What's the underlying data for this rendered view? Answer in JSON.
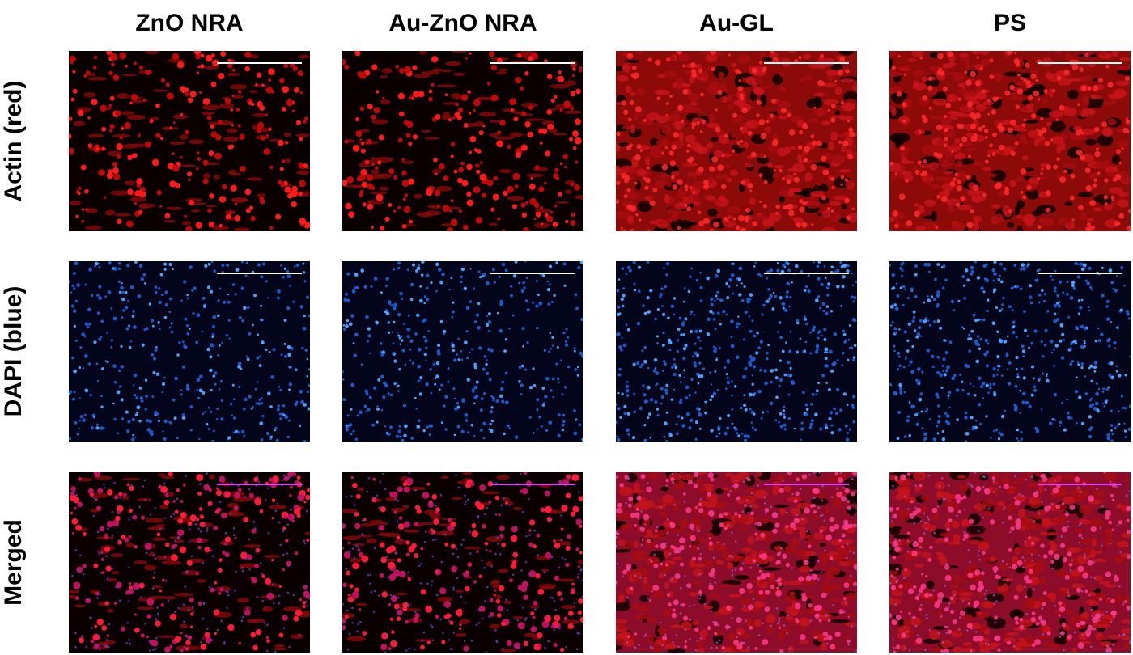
{
  "columns": [
    "ZnO NRA",
    "Au-ZnO NRA",
    "Au-GL",
    "PS"
  ],
  "rows": [
    "Actin (red)",
    "DAPI (blue)",
    "Merged"
  ]
}
